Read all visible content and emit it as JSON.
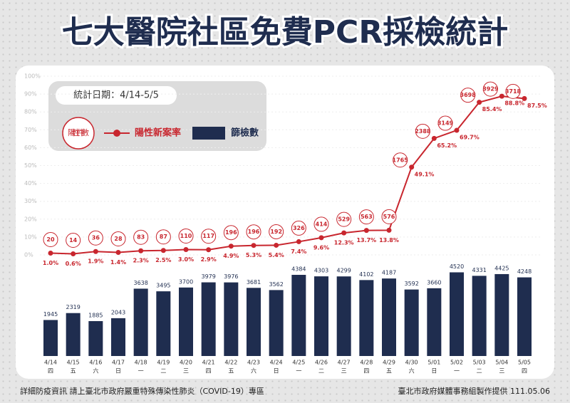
{
  "chart_data": {
    "type": "bar-line",
    "title": "七大醫院社區免費PCR採檢統計",
    "period": "統計日期：4/14-5/5",
    "categories": [
      "4/14",
      "4/15",
      "4/16",
      "4/17",
      "4/18",
      "4/19",
      "4/20",
      "4/21",
      "4/22",
      "4/23",
      "4/24",
      "4/25",
      "4/26",
      "4/27",
      "4/28",
      "4/29",
      "4/30",
      "5/01",
      "5/02",
      "5/03",
      "5/04",
      "5/05"
    ],
    "weekdays": [
      "四",
      "五",
      "六",
      "日",
      "一",
      "二",
      "三",
      "四",
      "五",
      "六",
      "日",
      "一",
      "二",
      "三",
      "四",
      "五",
      "六",
      "日",
      "一",
      "二",
      "三",
      "四"
    ],
    "series": [
      {
        "name": "篩檢數",
        "color": "#1f2d4f",
        "axis": "y2",
        "values": [
          1945,
          2319,
          1885,
          2043,
          3638,
          3495,
          3700,
          3979,
          3976,
          3681,
          3562,
          4384,
          4303,
          4299,
          4102,
          4187,
          3592,
          3660,
          4520,
          4331,
          4425,
          4248
        ]
      },
      {
        "name": "陽性新案率",
        "color": "#c8262e",
        "values": [
          1.0,
          0.6,
          1.9,
          1.4,
          2.3,
          2.5,
          3.0,
          2.9,
          4.9,
          5.3,
          5.4,
          7.4,
          9.6,
          12.3,
          13.7,
          13.8,
          49.1,
          65.2,
          69.7,
          85.4,
          88.8,
          87.5
        ],
        "value_labels": [
          "1.0%",
          "0.6%",
          "1.9%",
          "1.4%",
          "2.3%",
          "2.5%",
          "3.0%",
          "2.9%",
          "4.9%",
          "5.3%",
          "5.4%",
          "7.4%",
          "9.6%",
          "12.3%",
          "13.7%",
          "13.8%",
          "49.1%",
          "65.2%",
          "69.7%",
          "85.4%",
          "88.8%",
          "87.5%"
        ]
      },
      {
        "name": "陽性件數",
        "color": "#c8262e",
        "values": [
          20,
          14,
          36,
          28,
          83,
          87,
          110,
          117,
          196,
          196,
          192,
          326,
          414,
          529,
          563,
          576,
          1765,
          2388,
          3149,
          3698,
          3929,
          3718
        ]
      }
    ],
    "ylim": [
      0,
      100
    ],
    "yticks": [
      {
        "value": 0,
        "label": "0%"
      },
      {
        "value": 10,
        "label": "10%"
      },
      {
        "value": 20,
        "label": "20%"
      },
      {
        "value": 30,
        "label": "30%"
      },
      {
        "value": 40,
        "label": "40%"
      },
      {
        "value": 50,
        "label": "50%"
      },
      {
        "value": 60,
        "label": "60%"
      },
      {
        "value": 70,
        "label": "70%"
      },
      {
        "value": 80,
        "label": "80%"
      },
      {
        "value": 90,
        "label": "90%"
      },
      {
        "value": 100,
        "label": "100%"
      }
    ],
    "y2lim": [
      0,
      5000
    ],
    "grid": true,
    "footer_left": "詳細防疫資訊 請上臺北市政府嚴重特殊傳染性肺炎（COVID-19）專區",
    "footer_right": "臺北市政府媒體事務組製作提供 111.05.06"
  }
}
